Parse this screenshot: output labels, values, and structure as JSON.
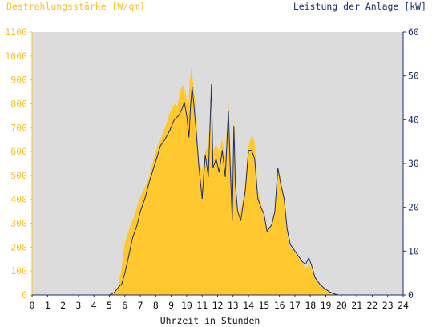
{
  "chart_data": {
    "type": "area",
    "ylabel_left": "Bestrahlungsstärke [W/qm]",
    "ylabel_right": "Leistung der Anlage [kW]",
    "xlabel": "Uhrzeit in Stunden",
    "xlim": [
      0,
      24
    ],
    "x_ticks": [
      "0",
      "1",
      "2",
      "3",
      "4",
      "5",
      "6",
      "7",
      "8",
      "9",
      "10",
      "11",
      "12",
      "13",
      "14",
      "15",
      "16",
      "17",
      "18",
      "19",
      "20",
      "21",
      "22",
      "23",
      "24"
    ],
    "ylim_left": [
      0,
      1100
    ],
    "y_ticks_left": [
      "0",
      "100",
      "200",
      "300",
      "400",
      "500",
      "600",
      "700",
      "800",
      "900",
      "1000",
      "1100"
    ],
    "ylim_right": [
      0,
      60
    ],
    "y_ticks_right": [
      "0",
      "10",
      "20",
      "30",
      "40",
      "50",
      "60"
    ],
    "grid": false,
    "colors": {
      "irradiance_fill": "#ffc82e",
      "power_line": "#1c2e6e",
      "plot_background": "#dcdcdc",
      "left_axis": "#f4c22b",
      "right_axis": "#1c2e6e"
    },
    "series": [
      {
        "name": "Bestrahlungsstärke [W/qm]",
        "axis": "left",
        "style": "area",
        "points": [
          [
            0,
            0
          ],
          [
            5,
            0
          ],
          [
            5.3,
            10
          ],
          [
            5.6,
            40
          ],
          [
            5.8,
            120
          ],
          [
            6.0,
            220
          ],
          [
            6.3,
            280
          ],
          [
            6.6,
            330
          ],
          [
            7.0,
            410
          ],
          [
            7.3,
            450
          ],
          [
            7.6,
            500
          ],
          [
            8.0,
            600
          ],
          [
            8.3,
            650
          ],
          [
            8.6,
            700
          ],
          [
            8.9,
            760
          ],
          [
            9.2,
            800
          ],
          [
            9.4,
            790
          ],
          [
            9.6,
            860
          ],
          [
            9.8,
            880
          ],
          [
            10.0,
            820
          ],
          [
            10.1,
            780
          ],
          [
            10.2,
            900
          ],
          [
            10.3,
            950
          ],
          [
            10.4,
            900
          ],
          [
            10.6,
            780
          ],
          [
            10.8,
            560
          ],
          [
            11.0,
            520
          ],
          [
            11.2,
            600
          ],
          [
            11.4,
            620
          ],
          [
            11.6,
            890
          ],
          [
            11.7,
            600
          ],
          [
            11.9,
            630
          ],
          [
            12.1,
            600
          ],
          [
            12.3,
            650
          ],
          [
            12.5,
            580
          ],
          [
            12.7,
            820
          ],
          [
            12.8,
            640
          ],
          [
            13.0,
            400
          ],
          [
            13.1,
            750
          ],
          [
            13.2,
            420
          ],
          [
            13.4,
            330
          ],
          [
            13.7,
            420
          ],
          [
            14.0,
            620
          ],
          [
            14.2,
            670
          ],
          [
            14.4,
            640
          ],
          [
            14.6,
            430
          ],
          [
            14.8,
            390
          ],
          [
            15.0,
            340
          ],
          [
            15.2,
            270
          ],
          [
            15.5,
            300
          ],
          [
            15.7,
            360
          ],
          [
            15.9,
            520
          ],
          [
            16.1,
            490
          ],
          [
            16.3,
            400
          ],
          [
            16.5,
            260
          ],
          [
            16.7,
            200
          ],
          [
            17.0,
            180
          ],
          [
            17.3,
            160
          ],
          [
            17.5,
            130
          ],
          [
            17.7,
            110
          ],
          [
            17.9,
            130
          ],
          [
            18.1,
            110
          ],
          [
            18.3,
            75
          ],
          [
            18.6,
            45
          ],
          [
            18.9,
            25
          ],
          [
            19.2,
            15
          ],
          [
            19.5,
            6
          ],
          [
            19.8,
            0
          ],
          [
            24,
            0
          ]
        ]
      },
      {
        "name": "Leistung der Anlage [kW]",
        "axis": "right",
        "style": "line",
        "points": [
          [
            0,
            0
          ],
          [
            5,
            0
          ],
          [
            5.3,
            0.5
          ],
          [
            5.6,
            1.8
          ],
          [
            5.8,
            2.5
          ],
          [
            6.0,
            5
          ],
          [
            6.2,
            8
          ],
          [
            6.5,
            13
          ],
          [
            6.8,
            16
          ],
          [
            7.0,
            19
          ],
          [
            7.3,
            22
          ],
          [
            7.6,
            26
          ],
          [
            8.0,
            30.5
          ],
          [
            8.3,
            34
          ],
          [
            8.6,
            35.5
          ],
          [
            8.9,
            37.5
          ],
          [
            9.2,
            40
          ],
          [
            9.5,
            41
          ],
          [
            9.7,
            42.5
          ],
          [
            9.85,
            44
          ],
          [
            10.0,
            41
          ],
          [
            10.15,
            36
          ],
          [
            10.25,
            43
          ],
          [
            10.35,
            47.5
          ],
          [
            10.45,
            44
          ],
          [
            10.6,
            38
          ],
          [
            10.8,
            29
          ],
          [
            11.0,
            22
          ],
          [
            11.2,
            32
          ],
          [
            11.4,
            27
          ],
          [
            11.6,
            48
          ],
          [
            11.7,
            29
          ],
          [
            11.9,
            31
          ],
          [
            12.1,
            28
          ],
          [
            12.3,
            33
          ],
          [
            12.5,
            27
          ],
          [
            12.7,
            42
          ],
          [
            12.8,
            31
          ],
          [
            12.95,
            17
          ],
          [
            13.05,
            38.5
          ],
          [
            13.15,
            25
          ],
          [
            13.3,
            19
          ],
          [
            13.5,
            17
          ],
          [
            13.8,
            24
          ],
          [
            14.0,
            33
          ],
          [
            14.2,
            33
          ],
          [
            14.4,
            31
          ],
          [
            14.6,
            22
          ],
          [
            14.8,
            20
          ],
          [
            15.0,
            18.5
          ],
          [
            15.2,
            14.5
          ],
          [
            15.5,
            16
          ],
          [
            15.7,
            19
          ],
          [
            15.9,
            29
          ],
          [
            16.1,
            25
          ],
          [
            16.3,
            22
          ],
          [
            16.5,
            15
          ],
          [
            16.7,
            11.5
          ],
          [
            17.0,
            10
          ],
          [
            17.3,
            8.5
          ],
          [
            17.5,
            7.5
          ],
          [
            17.7,
            7
          ],
          [
            17.9,
            8.5
          ],
          [
            18.1,
            6.5
          ],
          [
            18.3,
            4
          ],
          [
            18.6,
            2.5
          ],
          [
            18.9,
            1.5
          ],
          [
            19.2,
            0.8
          ],
          [
            19.5,
            0.3
          ],
          [
            19.8,
            0
          ],
          [
            24,
            0
          ]
        ]
      }
    ]
  }
}
